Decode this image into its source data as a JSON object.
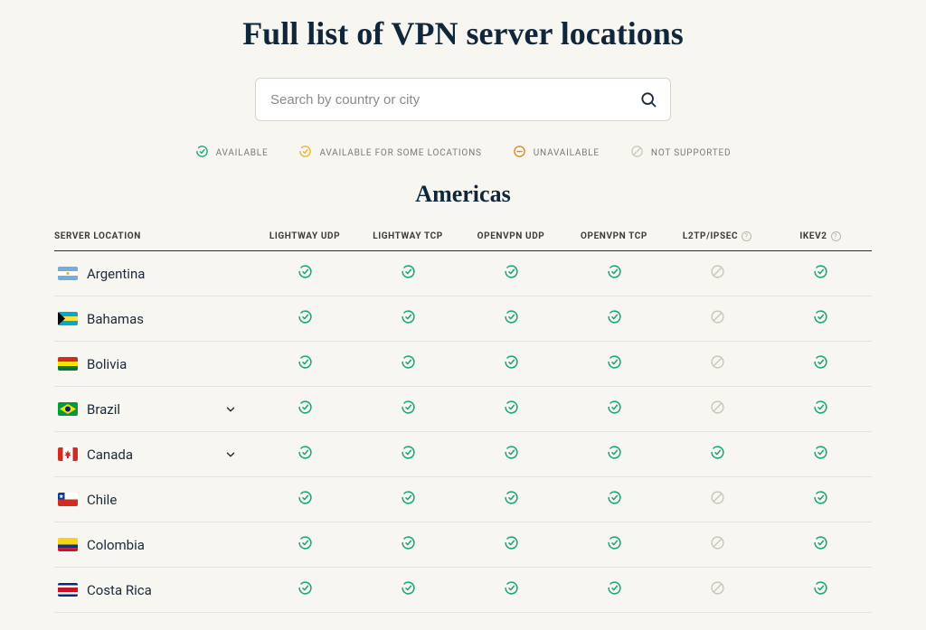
{
  "title": "Full list of VPN server locations",
  "search": {
    "placeholder": "Search by country or city"
  },
  "legend": [
    {
      "label": "AVAILABLE",
      "icon": "check",
      "color": "#1ea772"
    },
    {
      "label": "AVAILABLE FOR SOME LOCATIONS",
      "icon": "check",
      "color": "#e6b62e"
    },
    {
      "label": "UNAVAILABLE",
      "icon": "minus",
      "color": "#e08a2a"
    },
    {
      "label": "NOT SUPPORTED",
      "icon": "block",
      "color": "#c9c6be"
    }
  ],
  "region": "Americas",
  "columns": [
    {
      "key": "location",
      "label": "SERVER LOCATION",
      "info": false
    },
    {
      "key": "lw_udp",
      "label": "LIGHTWAY UDP",
      "info": false
    },
    {
      "key": "lw_tcp",
      "label": "LIGHTWAY TCP",
      "info": false
    },
    {
      "key": "ov_udp",
      "label": "OPENVPN UDP",
      "info": false
    },
    {
      "key": "ov_tcp",
      "label": "OPENVPN TCP",
      "info": false
    },
    {
      "key": "l2tp",
      "label": "L2TP/IPSEC",
      "info": true
    },
    {
      "key": "ikev2",
      "label": "IKEV2",
      "info": true
    }
  ],
  "status_icons": {
    "available": {
      "icon": "check",
      "color": "#1ea772"
    },
    "unsupported": {
      "icon": "block",
      "color": "#c9c6be"
    }
  },
  "rows": [
    {
      "country": "Argentina",
      "flag": "ar",
      "expandable": false,
      "cells": [
        "available",
        "available",
        "available",
        "available",
        "unsupported",
        "available"
      ]
    },
    {
      "country": "Bahamas",
      "flag": "bs",
      "expandable": false,
      "cells": [
        "available",
        "available",
        "available",
        "available",
        "unsupported",
        "available"
      ]
    },
    {
      "country": "Bolivia",
      "flag": "bo",
      "expandable": false,
      "cells": [
        "available",
        "available",
        "available",
        "available",
        "unsupported",
        "available"
      ]
    },
    {
      "country": "Brazil",
      "flag": "br",
      "expandable": true,
      "cells": [
        "available",
        "available",
        "available",
        "available",
        "unsupported",
        "available"
      ]
    },
    {
      "country": "Canada",
      "flag": "ca",
      "expandable": true,
      "cells": [
        "available",
        "available",
        "available",
        "available",
        "available",
        "available"
      ]
    },
    {
      "country": "Chile",
      "flag": "cl",
      "expandable": false,
      "cells": [
        "available",
        "available",
        "available",
        "available",
        "unsupported",
        "available"
      ]
    },
    {
      "country": "Colombia",
      "flag": "co",
      "expandable": false,
      "cells": [
        "available",
        "available",
        "available",
        "available",
        "unsupported",
        "available"
      ]
    },
    {
      "country": "Costa Rica",
      "flag": "cr",
      "expandable": false,
      "cells": [
        "available",
        "available",
        "available",
        "available",
        "unsupported",
        "available"
      ]
    }
  ],
  "flags": {
    "ar": {
      "stripes": [
        "#74acdf",
        "#ffffff",
        "#74acdf"
      ],
      "dot": "#f6b40e"
    },
    "bs": {
      "stripes": [
        "#00abc9",
        "#fae042",
        "#00abc9"
      ],
      "tri": "#000000"
    },
    "bo": {
      "stripes": [
        "#d52b1e",
        "#f9e300",
        "#007934"
      ]
    },
    "br": {
      "bg": "#009b3a",
      "diamond": "#fedf00",
      "circle": "#002776"
    },
    "ca": {
      "sides": "#d52b1e",
      "mid": "#ffffff",
      "leaf": "#d52b1e"
    },
    "cl": {
      "top_left": "#0039a6",
      "top_right": "#ffffff",
      "bottom": "#d52b1e",
      "star": "#ffffff"
    },
    "co": {
      "stripes": [
        "#fcd116",
        "#003893",
        "#ce1126"
      ],
      "weights": [
        2,
        1,
        1
      ]
    },
    "cr": {
      "stripes": [
        "#002b7f",
        "#ffffff",
        "#ce1126",
        "#ffffff",
        "#002b7f"
      ],
      "weights": [
        1,
        1,
        2,
        1,
        1
      ]
    }
  }
}
